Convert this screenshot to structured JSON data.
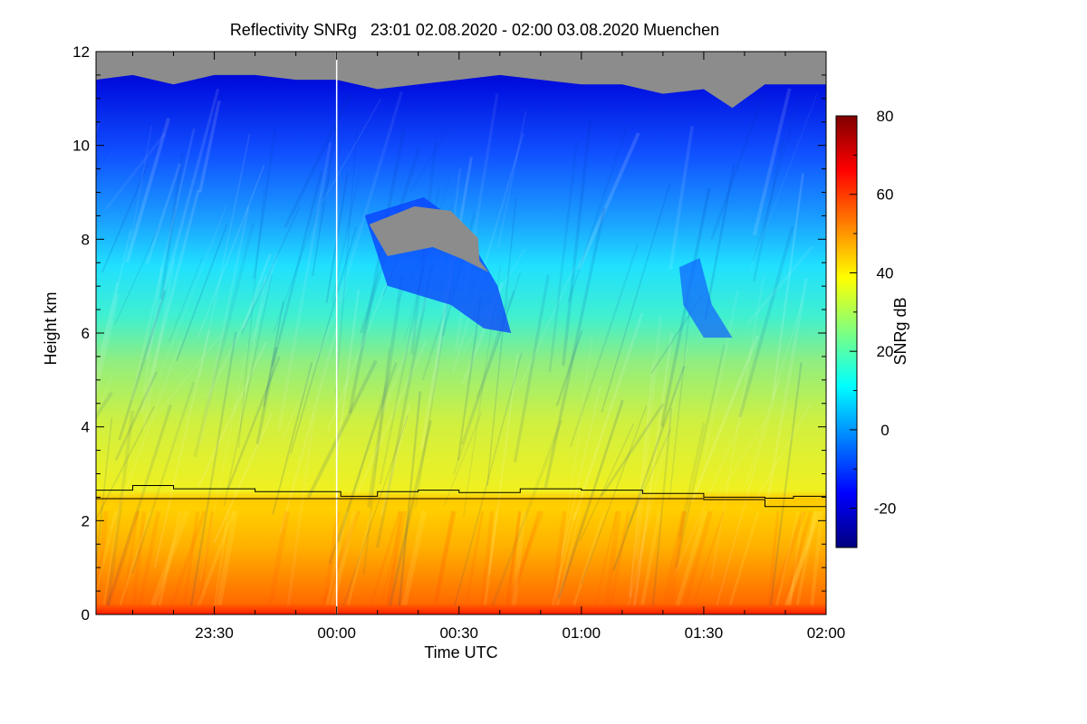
{
  "chart_data": {
    "type": "heatmap",
    "title": "Reflectivity SNRg   23:01 02.08.2020 - 02:00 03.08.2020 Muenchen",
    "xlabel": "Time UTC",
    "ylabel": "Height km",
    "x_range_minutes_since_midnight": [
      -59,
      120
    ],
    "xlim": [
      "23:01",
      "02:00"
    ],
    "ylim": [
      0,
      12
    ],
    "x_ticks": [
      {
        "label": "23:30",
        "minutes": -30
      },
      {
        "label": "00:00",
        "minutes": 0
      },
      {
        "label": "00:30",
        "minutes": 30
      },
      {
        "label": "01:00",
        "minutes": 60
      },
      {
        "label": "01:30",
        "minutes": 90
      },
      {
        "label": "02:00",
        "minutes": 120
      }
    ],
    "y_ticks": [
      0,
      2,
      4,
      6,
      8,
      10,
      12
    ],
    "colorbar": {
      "label": "SNRg dB",
      "range": [
        -30,
        80
      ],
      "ticks": [
        -20,
        0,
        20,
        40,
        60,
        80
      ]
    },
    "colors": {
      "no_signal": "#8c8c8c",
      "scale": [
        "#00007f",
        "#0000ff",
        "#007fff",
        "#00ffff",
        "#7fff7f",
        "#ffff00",
        "#ff7f00",
        "#ff0000",
        "#7f0000"
      ]
    },
    "overlay_lines": [
      {
        "name": "melting layer top",
        "points": [
          [
            -59,
            2.65
          ],
          [
            -50,
            2.75
          ],
          [
            -40,
            2.68
          ],
          [
            -20,
            2.62
          ],
          [
            0,
            2.62
          ],
          [
            1,
            2.52
          ],
          [
            10,
            2.62
          ],
          [
            20,
            2.65
          ],
          [
            30,
            2.6
          ],
          [
            45,
            2.68
          ],
          [
            60,
            2.65
          ],
          [
            75,
            2.58
          ],
          [
            90,
            2.5
          ],
          [
            105,
            2.48
          ],
          [
            112,
            2.52
          ],
          [
            120,
            2.45
          ]
        ]
      },
      {
        "name": "melting layer bottom",
        "points": [
          [
            -59,
            2.47
          ],
          [
            0,
            2.47
          ],
          [
            30,
            2.47
          ],
          [
            60,
            2.47
          ],
          [
            90,
            2.45
          ],
          [
            105,
            2.3
          ],
          [
            120,
            2.3
          ]
        ]
      }
    ],
    "echo_top_km": [
      [
        -59,
        11.4
      ],
      [
        -50,
        11.5
      ],
      [
        -40,
        11.3
      ],
      [
        -30,
        11.5
      ],
      [
        -20,
        11.5
      ],
      [
        -10,
        11.4
      ],
      [
        0,
        11.4
      ],
      [
        10,
        11.2
      ],
      [
        20,
        11.3
      ],
      [
        30,
        11.4
      ],
      [
        40,
        11.5
      ],
      [
        50,
        11.4
      ],
      [
        60,
        11.3
      ],
      [
        70,
        11.3
      ],
      [
        80,
        11.1
      ],
      [
        90,
        11.2
      ],
      [
        97,
        10.8
      ],
      [
        105,
        11.3
      ],
      [
        120,
        11.3
      ]
    ],
    "no_signal_region": {
      "x_minutes": [
        8,
        35
      ],
      "y_km": [
        7.2,
        8.7
      ]
    },
    "marker_line_minutes": 0
  }
}
